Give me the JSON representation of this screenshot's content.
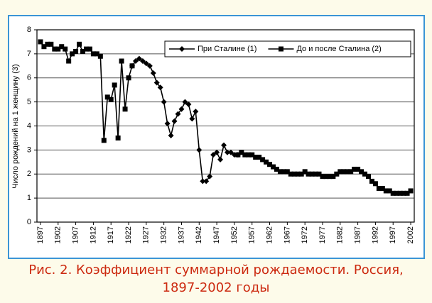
{
  "chart_data": {
    "type": "line",
    "caption": "Рис. 2. Коэффициент суммарной рождаемости. Россия, 1897-2002 годы",
    "y_label": "Число рождений на 1 женщину (3)",
    "x": [
      1897,
      1898,
      1899,
      1900,
      1901,
      1902,
      1903,
      1904,
      1905,
      1906,
      1907,
      1908,
      1909,
      1910,
      1911,
      1912,
      1913,
      1914,
      1915,
      1916,
      1917,
      1918,
      1919,
      1920,
      1921,
      1922,
      1923,
      1924,
      1925,
      1926,
      1927,
      1928,
      1929,
      1930,
      1931,
      1932,
      1933,
      1934,
      1935,
      1936,
      1937,
      1938,
      1939,
      1940,
      1941,
      1942,
      1943,
      1944,
      1945,
      1946,
      1947,
      1948,
      1949,
      1950,
      1951,
      1952,
      1953,
      1954,
      1955,
      1956,
      1957,
      1958,
      1959,
      1960,
      1961,
      1962,
      1963,
      1964,
      1965,
      1966,
      1967,
      1968,
      1969,
      1970,
      1971,
      1972,
      1973,
      1974,
      1975,
      1976,
      1977,
      1978,
      1979,
      1980,
      1981,
      1982,
      1983,
      1984,
      1985,
      1986,
      1987,
      1988,
      1989,
      1990,
      1991,
      1992,
      1993,
      1994,
      1995,
      1996,
      1997,
      1998,
      1999,
      2000,
      2001,
      2002
    ],
    "series": [
      {
        "name": "При Сталине (1)",
        "color": "#000000",
        "marker": "diamond",
        "values": [
          null,
          null,
          null,
          null,
          null,
          null,
          null,
          null,
          null,
          null,
          null,
          null,
          null,
          null,
          null,
          null,
          null,
          null,
          null,
          null,
          null,
          null,
          null,
          null,
          null,
          null,
          6.5,
          6.7,
          6.8,
          6.7,
          6.6,
          6.5,
          6.2,
          5.8,
          5.6,
          5.0,
          4.1,
          3.6,
          4.2,
          4.5,
          4.7,
          5.0,
          4.9,
          4.3,
          4.6,
          3.0,
          1.7,
          1.7,
          1.9,
          2.8,
          2.9,
          2.6,
          3.2,
          2.9,
          2.9,
          2.8,
          2.8,
          null,
          null,
          null,
          null,
          null,
          null,
          null,
          null,
          null,
          null,
          null,
          null,
          null,
          null,
          null,
          null,
          null,
          null,
          null,
          null,
          null,
          null,
          null,
          null,
          null,
          null,
          null,
          null,
          null,
          null,
          null,
          null,
          null,
          null,
          null,
          null,
          null,
          null,
          null,
          null,
          null,
          null,
          null,
          null,
          null,
          null,
          null,
          null,
          null
        ]
      },
      {
        "name": "До и после Сталина (2)",
        "color": "#000000",
        "marker": "square",
        "values": [
          7.5,
          7.3,
          7.4,
          7.4,
          7.2,
          7.2,
          7.3,
          7.2,
          6.7,
          7.0,
          7.1,
          7.4,
          7.1,
          7.2,
          7.2,
          7.0,
          7.0,
          6.9,
          3.4,
          5.2,
          5.1,
          5.7,
          3.5,
          6.7,
          4.7,
          6.0,
          6.5,
          null,
          null,
          null,
          null,
          null,
          null,
          null,
          null,
          null,
          null,
          null,
          null,
          null,
          null,
          null,
          null,
          null,
          null,
          null,
          null,
          null,
          null,
          null,
          null,
          null,
          null,
          null,
          null,
          null,
          2.8,
          2.9,
          2.8,
          2.8,
          2.8,
          2.7,
          2.7,
          2.6,
          2.5,
          2.4,
          2.3,
          2.2,
          2.1,
          2.1,
          2.1,
          2.0,
          2.0,
          2.0,
          2.0,
          2.1,
          2.0,
          2.0,
          2.0,
          2.0,
          1.9,
          1.9,
          1.9,
          1.9,
          2.0,
          2.1,
          2.1,
          2.1,
          2.1,
          2.2,
          2.2,
          2.1,
          2.0,
          1.9,
          1.7,
          1.6,
          1.4,
          1.4,
          1.3,
          1.3,
          1.2,
          1.2,
          1.2,
          1.2,
          1.2,
          1.3
        ]
      }
    ],
    "xlim": [
      1896,
      2003
    ],
    "xticks": [
      1897,
      1902,
      1907,
      1912,
      1917,
      1922,
      1927,
      1932,
      1937,
      1942,
      1947,
      1952,
      1957,
      1962,
      1967,
      1972,
      1977,
      1982,
      1987,
      1992,
      1997,
      2002
    ],
    "ylim": [
      0,
      8
    ],
    "yticks": [
      0,
      1,
      2,
      3,
      4,
      5,
      6,
      7,
      8
    ],
    "grid": true,
    "legend": "upper right"
  }
}
